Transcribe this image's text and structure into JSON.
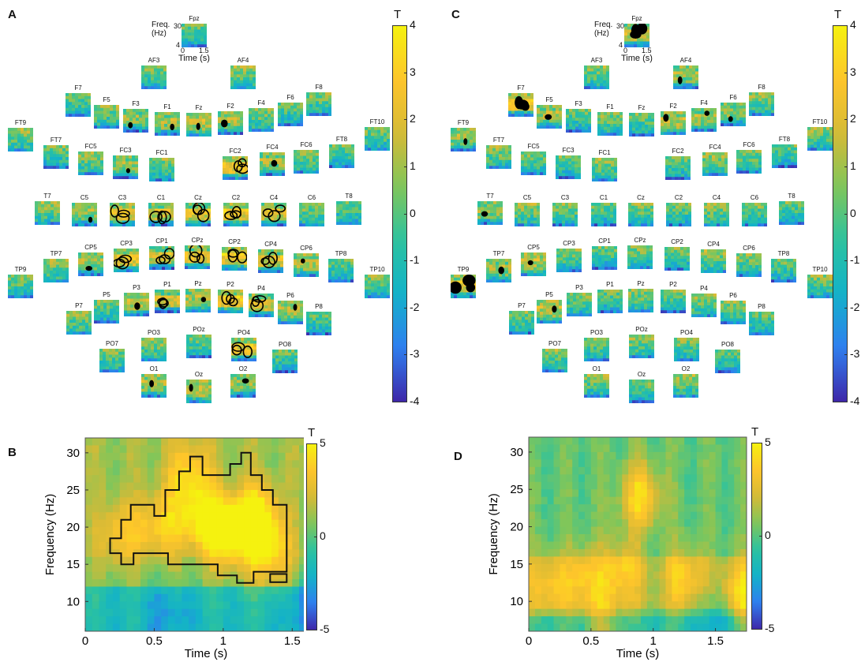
{
  "panels": {
    "A": "A",
    "B": "B",
    "C": "C",
    "D": "D"
  },
  "inset_axes": {
    "ylabel": "Freq. (Hz)",
    "ylabel_line1": "Freq.",
    "ylabel_line2": "(Hz)",
    "xlabel": "Time (s)",
    "y_top": "30",
    "y_bottom": "4",
    "x_left": "0",
    "x_right": "1.5"
  },
  "colorbar_topo": {
    "title": "T",
    "ticks": [
      "4",
      "3",
      "2",
      "1",
      "0",
      "-1",
      "-2",
      "-3",
      "-4"
    ],
    "range": [
      -4,
      4
    ]
  },
  "colorbar_main": {
    "title": "T",
    "ticks": [
      "5",
      "0",
      "-5"
    ],
    "range": [
      -5,
      5
    ]
  },
  "colormap": [
    "#3e26a8",
    "#2f7ef0",
    "#13b2c9",
    "#2bc2a0",
    "#80c65a",
    "#d6ba36",
    "#fec52b",
    "#f5f20f"
  ],
  "electrodes": [
    {
      "label": "Fpz",
      "sigA": 0,
      "sigC": 2
    },
    {
      "label": "AF3",
      "sigA": 0,
      "sigC": 0
    },
    {
      "label": "AF4",
      "sigA": 0,
      "sigC": 1
    },
    {
      "label": "F7",
      "sigA": 0,
      "sigC": 2
    },
    {
      "label": "F5",
      "sigA": 0,
      "sigC": 1
    },
    {
      "label": "F3",
      "sigA": 1,
      "sigC": 0
    },
    {
      "label": "F1",
      "sigA": 1,
      "sigC": 0
    },
    {
      "label": "Fz",
      "sigA": 1,
      "sigC": 0
    },
    {
      "label": "F2",
      "sigA": 1,
      "sigC": 1
    },
    {
      "label": "F4",
      "sigA": 0,
      "sigC": 1
    },
    {
      "label": "F6",
      "sigA": 0,
      "sigC": 1
    },
    {
      "label": "F8",
      "sigA": 0,
      "sigC": 0
    },
    {
      "label": "FT9",
      "sigA": 0,
      "sigC": 1
    },
    {
      "label": "FT7",
      "sigA": 0,
      "sigC": 0
    },
    {
      "label": "FC5",
      "sigA": 0,
      "sigC": 0
    },
    {
      "label": "FC3",
      "sigA": 1,
      "sigC": 0
    },
    {
      "label": "FC1",
      "sigA": 0,
      "sigC": 0
    },
    {
      "label": "FC2",
      "sigA": 2,
      "sigC": 0
    },
    {
      "label": "FC4",
      "sigA": 1,
      "sigC": 0
    },
    {
      "label": "FC6",
      "sigA": 0,
      "sigC": 0
    },
    {
      "label": "FT8",
      "sigA": 0,
      "sigC": 0
    },
    {
      "label": "FT10",
      "sigA": 0,
      "sigC": 0
    },
    {
      "label": "T7",
      "sigA": 0,
      "sigC": 1
    },
    {
      "label": "C5",
      "sigA": 1,
      "sigC": 0
    },
    {
      "label": "C3",
      "sigA": 2,
      "sigC": 0
    },
    {
      "label": "C1",
      "sigA": 2,
      "sigC": 0
    },
    {
      "label": "Cz",
      "sigA": 2,
      "sigC": 0
    },
    {
      "label": "C2",
      "sigA": 2,
      "sigC": 0
    },
    {
      "label": "C4",
      "sigA": 2,
      "sigC": 0
    },
    {
      "label": "C6",
      "sigA": 0,
      "sigC": 0
    },
    {
      "label": "T8",
      "sigA": 0,
      "sigC": 0
    },
    {
      "label": "TP9",
      "sigA": 0,
      "sigC": 2
    },
    {
      "label": "TP7",
      "sigA": 0,
      "sigC": 1
    },
    {
      "label": "CP5",
      "sigA": 1,
      "sigC": 1
    },
    {
      "label": "CP3",
      "sigA": 2,
      "sigC": 0
    },
    {
      "label": "CP1",
      "sigA": 2,
      "sigC": 0
    },
    {
      "label": "CPz",
      "sigA": 2,
      "sigC": 0
    },
    {
      "label": "CP2",
      "sigA": 2,
      "sigC": 0
    },
    {
      "label": "CP4",
      "sigA": 2,
      "sigC": 0
    },
    {
      "label": "CP6",
      "sigA": 1,
      "sigC": 0
    },
    {
      "label": "TP8",
      "sigA": 0,
      "sigC": 0
    },
    {
      "label": "TP10",
      "sigA": 0,
      "sigC": 0
    },
    {
      "label": "P7",
      "sigA": 0,
      "sigC": 0
    },
    {
      "label": "P5",
      "sigA": 0,
      "sigC": 1
    },
    {
      "label": "P3",
      "sigA": 1,
      "sigC": 0
    },
    {
      "label": "P1",
      "sigA": 2,
      "sigC": 0
    },
    {
      "label": "Pz",
      "sigA": 1,
      "sigC": 0
    },
    {
      "label": "P2",
      "sigA": 2,
      "sigC": 0
    },
    {
      "label": "P4",
      "sigA": 2,
      "sigC": 0
    },
    {
      "label": "P6",
      "sigA": 1,
      "sigC": 0
    },
    {
      "label": "P8",
      "sigA": 0,
      "sigC": 0
    },
    {
      "label": "PO7",
      "sigA": 0,
      "sigC": 0
    },
    {
      "label": "PO3",
      "sigA": 0,
      "sigC": 0
    },
    {
      "label": "POz",
      "sigA": 0,
      "sigC": 0
    },
    {
      "label": "PO4",
      "sigA": 2,
      "sigC": 0
    },
    {
      "label": "PO8",
      "sigA": 0,
      "sigC": 0
    },
    {
      "label": "O1",
      "sigA": 1,
      "sigC": 0
    },
    {
      "label": "Oz",
      "sigA": 1,
      "sigC": 0
    },
    {
      "label": "O2",
      "sigA": 1,
      "sigC": 0
    }
  ],
  "chart_data": [
    {
      "type": "heatmap",
      "panel": "B",
      "title": "",
      "xlabel": "Time (s)",
      "ylabel": "Frequency (Hz)",
      "xlim": [
        0,
        1.75
      ],
      "ylim": [
        6,
        32
      ],
      "xticks": [
        "0",
        "0.5",
        "1",
        "1.5"
      ],
      "yticks": [
        "10",
        "15",
        "20",
        "25",
        "30"
      ],
      "colorbar": {
        "title": "T",
        "range": [
          -5,
          5
        ],
        "ticks": [
          "5",
          "0",
          "-5"
        ]
      },
      "blobs": [
        {
          "t": 0.25,
          "f": 19,
          "value": 2.8
        },
        {
          "t": 0.55,
          "f": 20,
          "value": 3.2
        },
        {
          "t": 0.85,
          "f": 21,
          "value": 4.0
        },
        {
          "t": 1.05,
          "f": 19,
          "value": 4.6
        },
        {
          "t": 1.25,
          "f": 21,
          "value": 4.8
        },
        {
          "t": 1.35,
          "f": 16,
          "value": 3.2
        },
        {
          "t": 0.75,
          "f": 27,
          "value": 3.0
        },
        {
          "t": 0.6,
          "f": 8,
          "value": -1.5
        },
        {
          "t": 1.6,
          "f": 9,
          "value": -2.0
        }
      ],
      "cluster_contour": [
        [
          0.18,
          16.5
        ],
        [
          0.18,
          18.5
        ],
        [
          0.26,
          18.5
        ],
        [
          0.26,
          21
        ],
        [
          0.33,
          21
        ],
        [
          0.33,
          23
        ],
        [
          0.5,
          23
        ],
        [
          0.5,
          21.5
        ],
        [
          0.58,
          21.5
        ],
        [
          0.58,
          25
        ],
        [
          0.68,
          25
        ],
        [
          0.68,
          27.5
        ],
        [
          0.76,
          27.5
        ],
        [
          0.76,
          29.5
        ],
        [
          0.85,
          29.5
        ],
        [
          0.85,
          27
        ],
        [
          1.05,
          27
        ],
        [
          1.05,
          28.5
        ],
        [
          1.13,
          28.5
        ],
        [
          1.13,
          30
        ],
        [
          1.2,
          30
        ],
        [
          1.2,
          27
        ],
        [
          1.28,
          27
        ],
        [
          1.28,
          25
        ],
        [
          1.36,
          25
        ],
        [
          1.36,
          23
        ],
        [
          1.46,
          23
        ],
        [
          1.46,
          14
        ],
        [
          1.22,
          14
        ],
        [
          1.22,
          12.5
        ],
        [
          1.1,
          12.5
        ],
        [
          1.1,
          13.5
        ],
        [
          0.96,
          13.5
        ],
        [
          0.96,
          15
        ],
        [
          0.6,
          15
        ],
        [
          0.6,
          16.5
        ],
        [
          0.35,
          16.5
        ],
        [
          0.35,
          15
        ],
        [
          0.26,
          15
        ],
        [
          0.26,
          16.5
        ]
      ]
    },
    {
      "type": "heatmap",
      "panel": "D",
      "title": "",
      "xlabel": "Time (s)",
      "ylabel": "Frequency (Hz)",
      "xlim": [
        0,
        1.75
      ],
      "ylim": [
        6,
        32
      ],
      "xticks": [
        "0",
        "0.5",
        "1",
        "1.5"
      ],
      "yticks": [
        "10",
        "15",
        "20",
        "25",
        "30"
      ],
      "colorbar": {
        "title": "T",
        "range": [
          -5,
          5
        ],
        "ticks": [
          "5",
          "0",
          "-5"
        ]
      },
      "blobs": [
        {
          "t": 0.15,
          "f": 12,
          "value": 2.4
        },
        {
          "t": 0.45,
          "f": 13,
          "value": 2.6
        },
        {
          "t": 0.75,
          "f": 14,
          "value": 2.8
        },
        {
          "t": 0.9,
          "f": 24,
          "value": 4.0
        },
        {
          "t": 1.25,
          "f": 13,
          "value": 2.8
        },
        {
          "t": 1.7,
          "f": 11,
          "value": 3.5
        },
        {
          "t": 0.6,
          "f": 7,
          "value": 2.0
        },
        {
          "t": 1.5,
          "f": 8,
          "value": -2.0
        }
      ]
    }
  ]
}
